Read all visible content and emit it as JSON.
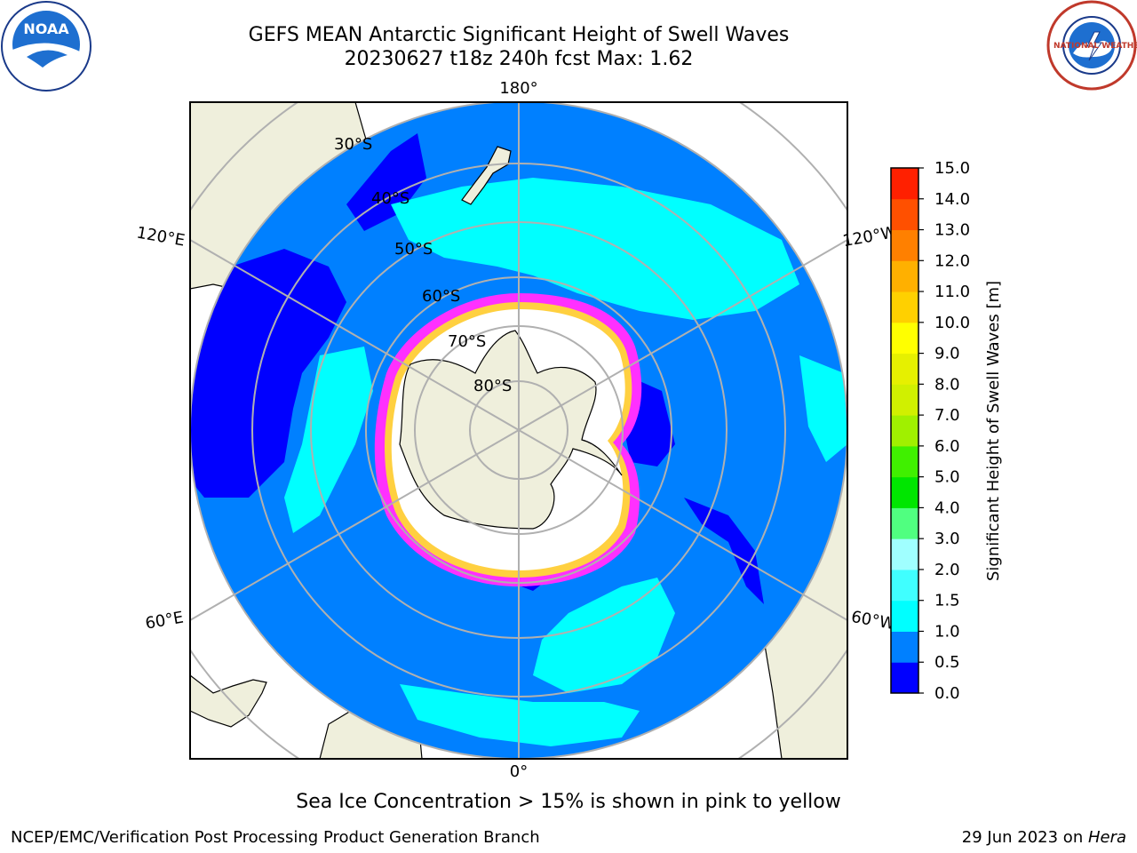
{
  "header": {
    "title_line1": "GEFS MEAN Antarctic Significant Height of Swell Waves",
    "title_line2": "20230627 t18z 240h fcst   Max: 1.62"
  },
  "logos": {
    "noaa_text": "NOAA",
    "nws_text": "NATIONAL WEATHER SERVICE"
  },
  "map": {
    "projection": "south-polar-stereographic",
    "longitude_labels": [
      "180°",
      "120°E",
      "120°W",
      "60°E",
      "60°W",
      "0°"
    ],
    "latitude_labels": [
      "30°S",
      "40°S",
      "50°S",
      "60°S",
      "70°S",
      "80°S"
    ],
    "colors": {
      "land": "#efefdc",
      "ocean_05_10": "#0080ff",
      "ocean_00_05": "#0000ff",
      "ocean_15_20": "#00ffff",
      "ocean_10_15": "#00e6ff",
      "ice": "#ffffff",
      "ice_edge_pink": "#ff30ff",
      "ice_edge_yellow": "#ffd040",
      "grid": "#b0b0b0"
    }
  },
  "colorbar": {
    "label": "Significant Height of Swell Waves [m]",
    "ticks": [
      "0.0",
      "0.5",
      "1.0",
      "1.5",
      "2.0",
      "3.0",
      "4.0",
      "5.0",
      "6.0",
      "7.0",
      "8.0",
      "9.0",
      "10.0",
      "11.0",
      "12.0",
      "13.0",
      "14.0",
      "15.0"
    ],
    "colors": [
      "#0000ff",
      "#0080ff",
      "#00ffff",
      "#40ffff",
      "#a0ffff",
      "#50ff80",
      "#00e600",
      "#40f000",
      "#a0f000",
      "#d0f000",
      "#e6f000",
      "#ffff00",
      "#ffd000",
      "#ffb000",
      "#ff8000",
      "#ff5000",
      "#ff2000",
      "#ff0000"
    ]
  },
  "notes": {
    "ice_note": "Sea Ice Concentration > 15% is shown in pink to yellow"
  },
  "footer": {
    "left": "NCEP/EMC/Verification Post Processing Product Generation Branch",
    "right_date": "29 Jun 2023 on ",
    "right_host": "Hera"
  }
}
